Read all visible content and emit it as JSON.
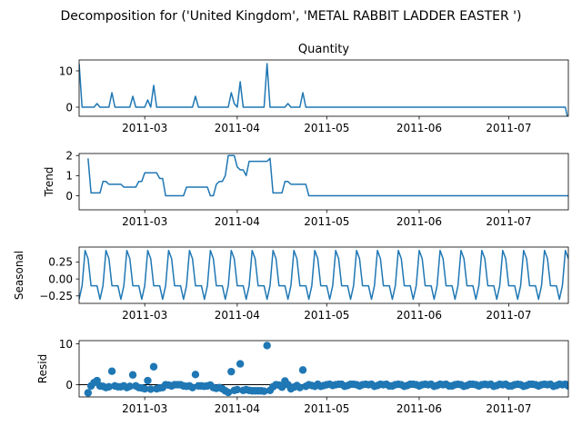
{
  "figure": {
    "suptitle": "Decomposition for ('United Kingdom', 'METAL RABBIT LADDER EASTER ')"
  },
  "colors": {
    "series": "#1f77b4",
    "axis": "#000000",
    "zero_line": "#000000",
    "background": "#ffffff"
  },
  "chart_data": [
    {
      "type": "line",
      "panel": "observed",
      "title": "Quantity",
      "ylabel": "",
      "x_start": "2011-02-07",
      "x_step_days": 1,
      "xlim": [
        "2011-02-07",
        "2011-07-21"
      ],
      "ylim": [
        -2.5,
        13
      ],
      "xticks": [
        "2011-03",
        "2011-04",
        "2011-05",
        "2011-06",
        "2011-07"
      ],
      "yticks": [
        0,
        10
      ],
      "values": [
        12,
        0,
        0,
        0,
        0,
        0,
        1,
        0,
        0,
        0,
        0,
        4,
        0,
        0,
        0,
        0,
        0,
        0,
        3,
        0,
        0,
        0,
        0,
        2,
        0,
        6,
        0,
        0,
        0,
        0,
        0,
        0,
        0,
        0,
        0,
        0,
        0,
        0,
        0,
        3,
        0,
        0,
        0,
        0,
        0,
        0,
        0,
        0,
        0,
        0,
        0,
        4,
        1,
        0,
        7,
        0,
        0,
        0,
        0,
        0,
        0,
        0,
        0,
        12,
        0,
        0,
        0,
        0,
        0,
        0,
        1,
        0,
        0,
        0,
        0,
        4,
        0,
        0,
        0,
        0,
        0,
        0,
        0,
        0,
        0,
        0,
        0,
        0,
        0,
        0,
        0,
        0,
        0,
        0,
        0,
        0,
        0,
        0,
        0,
        0,
        0,
        0,
        0,
        0,
        0,
        0,
        0,
        0,
        0,
        0,
        0,
        0,
        0,
        0,
        0,
        0,
        0,
        0,
        0,
        0,
        0,
        0,
        0,
        0,
        0,
        0,
        0,
        0,
        0,
        0,
        0,
        0,
        0,
        0,
        0,
        0,
        0,
        0,
        0,
        0,
        0,
        0,
        0,
        0,
        0,
        0,
        0,
        0,
        0,
        0,
        0,
        0,
        0,
        0,
        0,
        0,
        0,
        0,
        0,
        0,
        0,
        0,
        0,
        0,
        -4
      ]
    },
    {
      "type": "line",
      "panel": "trend",
      "title": "",
      "ylabel": "Trend",
      "x_start": "2011-02-07",
      "x_step_days": 1,
      "xlim": [
        "2011-02-07",
        "2011-07-21"
      ],
      "ylim": [
        -0.7,
        2.1
      ],
      "xticks": [
        "2011-03",
        "2011-04",
        "2011-05",
        "2011-06",
        "2011-07"
      ],
      "yticks": [
        0,
        1,
        2
      ],
      "values": [
        null,
        null,
        null,
        1.86,
        0.14,
        0.14,
        0.14,
        0.14,
        0.71,
        0.71,
        0.57,
        0.57,
        0.57,
        0.57,
        0.57,
        0.43,
        0.43,
        0.43,
        0.43,
        0.43,
        0.71,
        0.71,
        1.14,
        1.14,
        1.14,
        1.14,
        1.14,
        0.86,
        0.86,
        0.0,
        0.0,
        0.0,
        0.0,
        0.0,
        0.0,
        0.0,
        0.43,
        0.43,
        0.43,
        0.43,
        0.43,
        0.43,
        0.43,
        0.43,
        0.0,
        0.0,
        0.57,
        0.71,
        0.71,
        1.0,
        2.0,
        2.0,
        2.0,
        1.43,
        1.29,
        1.29,
        1.0,
        1.71,
        1.71,
        1.71,
        1.71,
        1.71,
        1.71,
        1.71,
        1.86,
        0.14,
        0.14,
        0.14,
        0.14,
        0.71,
        0.71,
        0.57,
        0.57,
        0.57,
        0.57,
        0.57,
        0.57,
        0.0,
        0.0,
        0.0,
        0.0,
        0.0,
        0.0,
        0.0,
        0.0,
        0.0,
        0.0,
        0.0,
        0.0,
        0.0,
        0.0,
        0.0,
        0.0,
        0.0,
        0.0,
        0.0,
        0.0,
        0.0,
        0.0,
        0.0,
        0.0,
        0.0,
        0.0,
        0.0,
        0.0,
        0.0,
        0.0,
        0.0,
        0.0,
        0.0,
        0.0,
        0.0,
        0.0,
        0.0,
        0.0,
        0.0,
        0.0,
        0.0,
        0.0,
        0.0,
        0.0,
        0.0,
        0.0,
        0.0,
        0.0,
        0.0,
        0.0,
        0.0,
        0.0,
        0.0,
        0.0,
        0.0,
        0.0,
        0.0,
        0.0,
        0.0,
        0.0,
        0.0,
        0.0,
        0.0,
        0.0,
        0.0,
        0.0,
        0.0,
        0.0,
        0.0,
        0.0,
        0.0,
        0.0,
        0.0,
        0.0,
        0.0,
        0.0,
        0.0,
        0.0,
        0.0,
        0.0,
        0.0,
        0.0,
        0.0,
        0.0,
        0.0,
        0.0,
        0.0,
        0.0,
        0.0,
        -0.57,
        null,
        null,
        null
      ]
    },
    {
      "type": "line",
      "panel": "seasonal",
      "title": "",
      "ylabel": "Seasonal",
      "x_start": "2011-02-07",
      "x_step_days": 1,
      "xlim": [
        "2011-02-07",
        "2011-07-21"
      ],
      "ylim": [
        -0.36,
        0.47
      ],
      "xticks": [
        "2011-03",
        "2011-04",
        "2011-05",
        "2011-06",
        "2011-07"
      ],
      "yticks": [
        -0.25,
        0.0,
        0.25
      ],
      "period_pattern": [
        -0.1,
        -0.3,
        -0.1,
        0.42,
        0.3,
        -0.1,
        -0.1
      ],
      "period_start_offset": 1
    },
    {
      "type": "scatter",
      "panel": "residual",
      "title": "",
      "ylabel": "Resid",
      "x_start": "2011-02-07",
      "x_step_days": 1,
      "xlim": [
        "2011-02-07",
        "2011-07-21"
      ],
      "ylim": [
        -3,
        10.8
      ],
      "xticks": [
        "2011-03",
        "2011-04",
        "2011-05",
        "2011-06",
        "2011-07"
      ],
      "yticks": [
        0,
        10
      ],
      "zero_line": true,
      "values": [
        null,
        null,
        null,
        -2.0,
        -0.3,
        0.5,
        1.0,
        -0.3,
        -0.4,
        -0.7,
        -0.5,
        3.3,
        -0.3,
        -0.5,
        -0.5,
        -0.3,
        -0.7,
        -0.4,
        2.4,
        -0.3,
        -0.7,
        -0.8,
        -1.0,
        1.0,
        -1.1,
        4.4,
        -1.0,
        -0.8,
        -0.7,
        0.0,
        -0.1,
        -0.3,
        0.0,
        0.0,
        0.0,
        -0.3,
        -0.4,
        -0.3,
        -0.7,
        2.5,
        -0.3,
        -0.3,
        -0.4,
        -0.3,
        -0.1,
        -0.7,
        -0.9,
        -0.7,
        -1.0,
        -1.5,
        -1.9,
        3.2,
        -1.4,
        -1.2,
        5.1,
        -1.4,
        -1.2,
        -1.4,
        -1.5,
        -1.5,
        -1.5,
        -1.5,
        -1.6,
        9.6,
        -1.4,
        -0.5,
        0.0,
        -0.1,
        -0.6,
        0.9,
        0.0,
        -1.0,
        -0.6,
        -0.2,
        -0.7,
        3.6,
        -0.4,
        0.0,
        -0.2,
        -0.4,
        0.1,
        -0.4,
        -0.2,
        0.0,
        0.1,
        -0.2,
        0.0,
        0.1,
        0.1,
        -0.4,
        -0.2,
        0.1,
        0.1,
        0.0,
        -0.3,
        0.0,
        0.1,
        0.0,
        0.1,
        -0.4,
        -0.2,
        0.1,
        0.0,
        0.1,
        -0.3,
        -0.3,
        0.0,
        0.1,
        0.0,
        -0.4,
        -0.2,
        0.1,
        0.1,
        0.0,
        -0.3,
        0.0,
        0.1,
        0.0,
        0.1,
        -0.4,
        -0.2,
        0.1,
        0.0,
        0.1,
        -0.3,
        -0.3,
        0.0,
        0.1,
        0.0,
        -0.4,
        -0.2,
        0.1,
        0.1,
        0.0,
        -0.3,
        0.0,
        0.1,
        0.0,
        0.1,
        -0.4,
        -0.2,
        0.1,
        0.0,
        0.1,
        -0.3,
        -0.3,
        0.0,
        0.1,
        0.0,
        -0.4,
        -0.2,
        0.1,
        0.1,
        0.0,
        -0.3,
        0.0,
        0.1,
        0.0,
        0.1,
        -0.4,
        -0.2,
        0.1,
        0.0,
        0.1,
        -0.3,
        -0.3,
        0.0,
        0.1,
        0.3,
        null,
        null,
        null
      ]
    }
  ]
}
